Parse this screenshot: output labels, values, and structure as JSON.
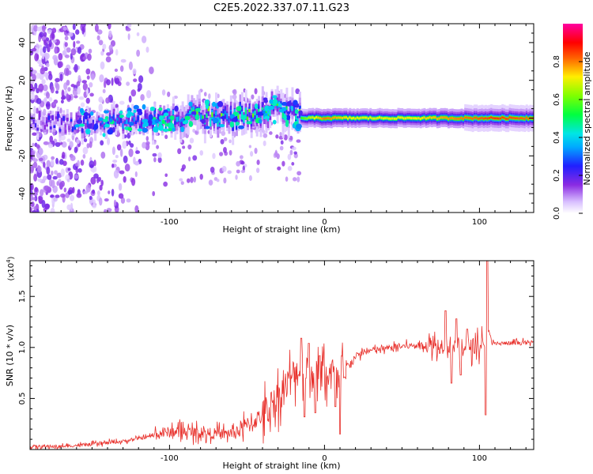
{
  "figure_title": "C2E5.2022.337.07.11.G23",
  "chart_data": [
    {
      "type": "heatmap",
      "title": "C2E5.2022.337.07.11.G23",
      "xlabel": "Height of straight line (km)",
      "ylabel": "Frequency (Hz)",
      "xlim": [
        -190,
        135
      ],
      "ylim": [
        -50,
        50
      ],
      "xticks": [
        -100,
        0,
        100
      ],
      "yticks": [
        -40,
        -20,
        0,
        20,
        40
      ],
      "xtick_labels": [
        "-100",
        "0",
        "100"
      ],
      "ytick_labels": [
        "-40",
        "-20",
        "0",
        "20",
        "40"
      ],
      "colorbar": {
        "label": "Normalized spectral amplitude",
        "range": [
          0,
          1
        ],
        "ticks": [
          0.0,
          0.2,
          0.4,
          0.6,
          0.8
        ],
        "tick_labels": [
          "0.0",
          "0.2",
          "0.4",
          "0.6",
          "0.8"
        ],
        "colormap": "rainbow (purple-blue-cyan-green-yellow-red-magenta)"
      },
      "ridge": {
        "x": [
          -190,
          -160,
          -140,
          -120,
          -100,
          -80,
          -60,
          -40,
          -30,
          -20,
          -15,
          -10,
          0,
          10,
          20,
          40,
          60,
          80,
          100,
          110,
          135
        ],
        "center_hz": [
          -2,
          -3,
          -2,
          -1,
          0,
          2,
          1,
          3,
          5,
          2,
          0,
          0,
          0,
          0,
          0,
          0,
          0,
          0,
          0,
          0,
          0
        ],
        "amplitude": [
          0.15,
          0.2,
          0.25,
          0.3,
          0.35,
          0.45,
          0.45,
          0.45,
          0.4,
          0.35,
          0.55,
          0.65,
          0.8,
          0.75,
          0.7,
          0.7,
          0.72,
          0.78,
          0.82,
          0.85,
          0.8
        ]
      }
    },
    {
      "type": "line",
      "xlabel": "Height of straight line (km)",
      "ylabel": "SNR (10 * v/v)",
      "y_multiplier_label": "(x10",
      "y_multiplier_exp": "4",
      "y_multiplier_close": ")",
      "xlim": [
        -190,
        135
      ],
      "ylim": [
        0,
        18500
      ],
      "xticks": [
        -100,
        0,
        100
      ],
      "yticks": [
        5000,
        10000,
        15000
      ],
      "xtick_labels": [
        "-100",
        "0",
        "100"
      ],
      "ytick_labels": [
        "0.5",
        "1.0",
        "1.5"
      ],
      "color": "#e8302b",
      "series": [
        {
          "x": [
            -190,
            -170,
            -150,
            -130,
            -115,
            -105,
            -95,
            -85,
            -75,
            -65,
            -55,
            -45,
            -40,
            -35,
            -30,
            -25,
            -20,
            -15,
            -12,
            -10,
            -5,
            0,
            5,
            10,
            15,
            20,
            25,
            30,
            40,
            50,
            60,
            70,
            75,
            80,
            85,
            90,
            95,
            100,
            102,
            104,
            106,
            108,
            110,
            120,
            135
          ],
          "y": [
            300,
            300,
            500,
            800,
            1200,
            1600,
            1800,
            1700,
            1600,
            1500,
            1900,
            2800,
            3400,
            4200,
            5200,
            6200,
            7400,
            7900,
            8300,
            7600,
            7000,
            7400,
            7600,
            6000,
            8200,
            9100,
            9500,
            9700,
            9900,
            10100,
            10200,
            10300,
            10200,
            10300,
            10200,
            10200,
            10100,
            10300,
            10500,
            9600,
            12000,
            10300,
            10400,
            10400,
            10500
          ],
          "spikes": [
            {
              "x": -15,
              "y": 10900
            },
            {
              "x": -13,
              "y": 3200
            },
            {
              "x": -10,
              "y": 10400
            },
            {
              "x": -6,
              "y": 3600
            },
            {
              "x": -3,
              "y": 9200
            },
            {
              "x": 7,
              "y": 4200
            },
            {
              "x": 10,
              "y": 1500
            },
            {
              "x": 13,
              "y": 7100
            },
            {
              "x": 78,
              "y": 13600
            },
            {
              "x": 82,
              "y": 6500
            },
            {
              "x": 85,
              "y": 12800
            },
            {
              "x": 88,
              "y": 7300
            },
            {
              "x": 92,
              "y": 11800
            },
            {
              "x": 104,
              "y": 3400
            },
            {
              "x": 105,
              "y": 18500
            }
          ]
        }
      ]
    }
  ]
}
